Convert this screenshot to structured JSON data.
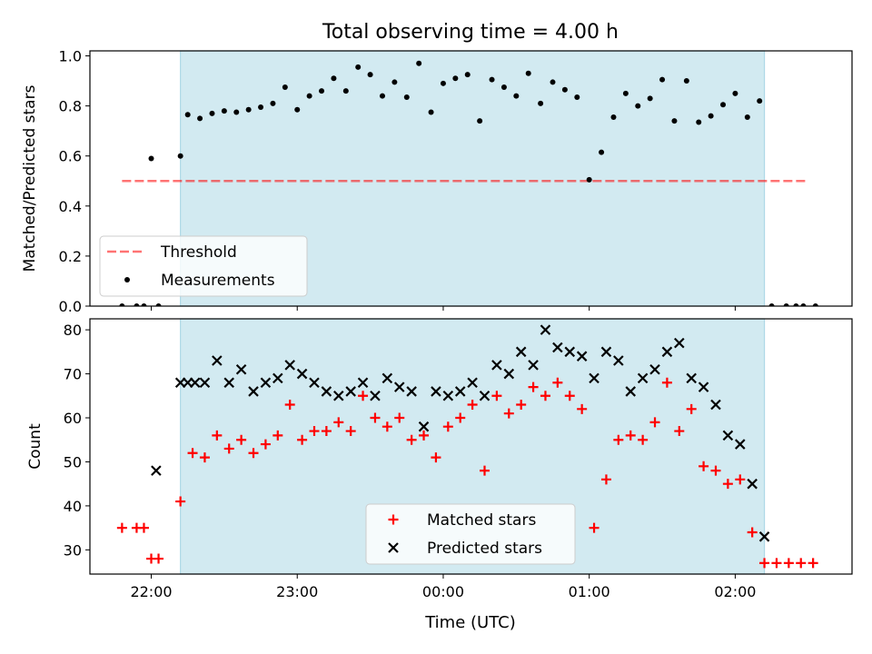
{
  "figure": {
    "title": "Total observing time = 4.00 h",
    "xlabel": "Time (UTC)"
  },
  "colors": {
    "shade": "#add8e6",
    "threshold": "#ff0000",
    "measurement": "#000000",
    "matched": "#ff0000",
    "predicted": "#000000"
  },
  "chart_data": [
    {
      "type": "scatter",
      "id": "ratio",
      "ylabel": "Matched/Predicted stars",
      "xlim": [
        21.58,
        2.8
      ],
      "ylim": [
        0.0,
        1.02
      ],
      "yticks": [
        "0.0",
        "0.2",
        "0.4",
        "0.6",
        "0.8",
        "1.0"
      ],
      "xticks": [],
      "shaded_region": [
        "22:12",
        "02:12"
      ],
      "legend": {
        "position": "lower-left",
        "entries": [
          "Threshold",
          "Measurements"
        ]
      },
      "series": [
        {
          "name": "Threshold",
          "type": "line",
          "style": "dashed",
          "x": [
            "21:48",
            "02:30"
          ],
          "values": [
            0.5,
            0.5
          ]
        },
        {
          "name": "Measurements",
          "type": "scatter",
          "marker": "dot",
          "x": [
            "21:48",
            "21:54",
            "21:57",
            "22:00",
            "22:03",
            "22:12",
            "22:15",
            "22:20",
            "22:25",
            "22:30",
            "22:35",
            "22:40",
            "22:45",
            "22:50",
            "22:55",
            "23:00",
            "23:05",
            "23:10",
            "23:15",
            "23:20",
            "23:25",
            "23:30",
            "23:35",
            "23:40",
            "23:45",
            "23:50",
            "23:55",
            "00:00",
            "00:05",
            "00:10",
            "00:15",
            "00:20",
            "00:25",
            "00:30",
            "00:35",
            "00:40",
            "00:45",
            "00:50",
            "00:55",
            "01:00",
            "01:05",
            "01:10",
            "01:15",
            "01:20",
            "01:25",
            "01:30",
            "01:35",
            "01:40",
            "01:45",
            "01:50",
            "01:55",
            "02:00",
            "02:05",
            "02:10",
            "02:15",
            "02:21",
            "02:25",
            "02:28",
            "02:33"
          ],
          "values": [
            0.0,
            0.0,
            0.0,
            0.59,
            0.0,
            0.6,
            0.765,
            0.75,
            0.77,
            0.78,
            0.775,
            0.785,
            0.795,
            0.81,
            0.875,
            0.785,
            0.84,
            0.86,
            0.91,
            0.86,
            0.955,
            0.925,
            0.84,
            0.895,
            0.835,
            0.97,
            0.775,
            0.89,
            0.91,
            0.925,
            0.74,
            0.905,
            0.875,
            0.84,
            0.93,
            0.81,
            0.895,
            0.865,
            0.835,
            0.505,
            0.615,
            0.755,
            0.85,
            0.8,
            0.83,
            0.905,
            0.74,
            0.9,
            0.735,
            0.76,
            0.805,
            0.85,
            0.755,
            0.82,
            0.0,
            0.0,
            0.0,
            0.0,
            0.0
          ]
        }
      ]
    },
    {
      "type": "scatter",
      "id": "counts",
      "ylabel": "Count",
      "xlim": [
        21.58,
        2.8
      ],
      "ylim": [
        24.5,
        82.5
      ],
      "yticks": [
        "30",
        "40",
        "50",
        "60",
        "70",
        "80"
      ],
      "xticks": [
        "22:00",
        "23:00",
        "00:00",
        "01:00",
        "02:00"
      ],
      "shaded_region": [
        "22:12",
        "02:12"
      ],
      "legend": {
        "position": "lower-center",
        "entries": [
          "Matched stars",
          "Predicted stars"
        ]
      },
      "series": [
        {
          "name": "Matched stars",
          "type": "scatter",
          "marker": "plus",
          "x": [
            "21:48",
            "21:54",
            "21:57",
            "22:00",
            "22:03",
            "22:12",
            "22:17",
            "22:22",
            "22:27",
            "22:32",
            "22:37",
            "22:42",
            "22:47",
            "22:52",
            "22:57",
            "23:02",
            "23:07",
            "23:12",
            "23:17",
            "23:22",
            "23:27",
            "23:32",
            "23:37",
            "23:42",
            "23:47",
            "23:52",
            "23:57",
            "00:02",
            "00:07",
            "00:12",
            "00:17",
            "00:22",
            "00:27",
            "00:32",
            "00:37",
            "00:42",
            "00:47",
            "00:52",
            "00:57",
            "01:02",
            "01:07",
            "01:12",
            "01:17",
            "01:22",
            "01:27",
            "01:32",
            "01:37",
            "01:42",
            "01:47",
            "01:52",
            "01:57",
            "02:02",
            "02:07",
            "02:12",
            "02:17",
            "02:22",
            "02:27",
            "02:32"
          ],
          "values": [
            35,
            35,
            35,
            28,
            28,
            41,
            52,
            51,
            56,
            53,
            55,
            52,
            54,
            56,
            63,
            55,
            57,
            57,
            59,
            57,
            65,
            60,
            58,
            60,
            55,
            56,
            51,
            58,
            60,
            63,
            48,
            65,
            61,
            63,
            67,
            65,
            68,
            65,
            62,
            35,
            46,
            55,
            56,
            55,
            59,
            68,
            57,
            62,
            49,
            48,
            45,
            46,
            34,
            27,
            27,
            27,
            27,
            27
          ]
        },
        {
          "name": "Predicted stars",
          "type": "scatter",
          "marker": "x",
          "x": [
            "22:02",
            "22:12",
            "22:15",
            "22:18",
            "22:22",
            "22:27",
            "22:32",
            "22:37",
            "22:42",
            "22:47",
            "22:52",
            "22:57",
            "23:02",
            "23:07",
            "23:12",
            "23:17",
            "23:22",
            "23:27",
            "23:32",
            "23:37",
            "23:42",
            "23:47",
            "23:52",
            "23:57",
            "00:02",
            "00:07",
            "00:12",
            "00:17",
            "00:22",
            "00:27",
            "00:32",
            "00:37",
            "00:42",
            "00:47",
            "00:52",
            "00:57",
            "01:02",
            "01:07",
            "01:12",
            "01:17",
            "01:22",
            "01:27",
            "01:32",
            "01:37",
            "01:42",
            "01:47",
            "01:52",
            "01:57",
            "02:02",
            "02:07",
            "02:12"
          ],
          "values": [
            48,
            68,
            68,
            68,
            68,
            73,
            68,
            71,
            66,
            68,
            69,
            72,
            70,
            68,
            66,
            65,
            66,
            68,
            65,
            69,
            67,
            66,
            58,
            66,
            65,
            66,
            68,
            65,
            72,
            70,
            75,
            72,
            80,
            76,
            75,
            74,
            69,
            75,
            73,
            66,
            69,
            71,
            75,
            77,
            69,
            67,
            63,
            56,
            54,
            45,
            33
          ]
        }
      ]
    }
  ]
}
